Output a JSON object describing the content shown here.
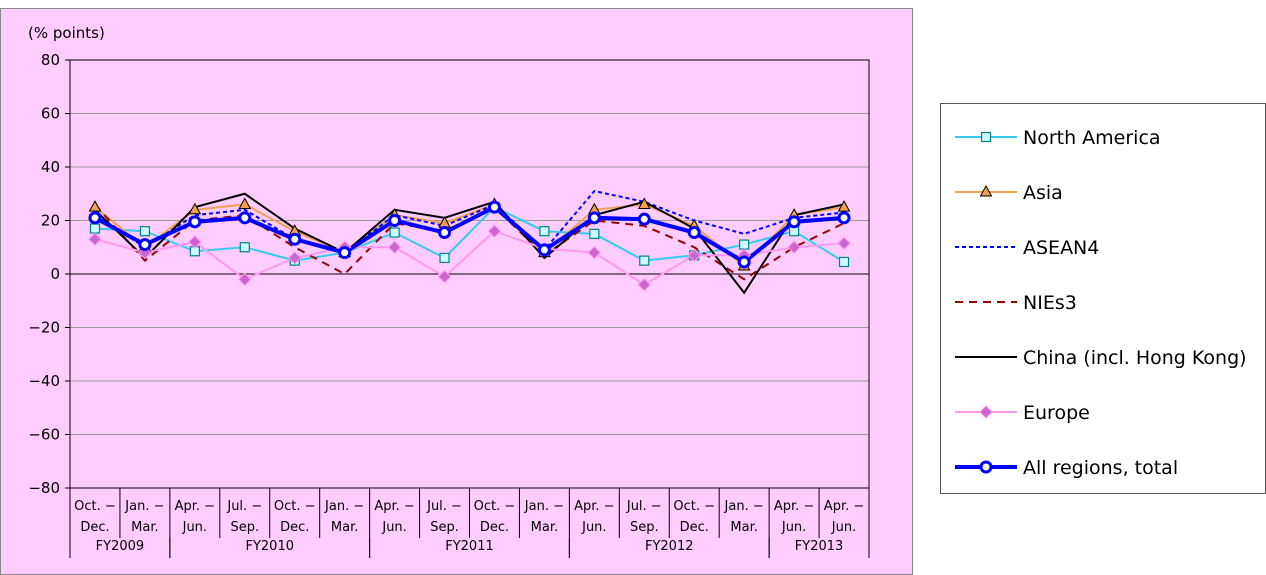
{
  "chart_data": {
    "type": "line",
    "title": "",
    "ylabel": "(% points)",
    "ylim": [
      -80,
      80
    ],
    "yticks": [
      "80",
      "60",
      "40",
      "20",
      "0",
      "−20",
      "−40",
      "−60",
      "−80"
    ],
    "grid": true,
    "legend_position": "right",
    "categories": [
      {
        "line1": "Oct. −",
        "line2": "Dec."
      },
      {
        "line1": "Jan. −",
        "line2": "Mar."
      },
      {
        "line1": "Apr. −",
        "line2": "Jun."
      },
      {
        "line1": "Jul. −",
        "line2": "Sep."
      },
      {
        "line1": "Oct. −",
        "line2": "Dec."
      },
      {
        "line1": "Jan. −",
        "line2": "Mar."
      },
      {
        "line1": "Apr. −",
        "line2": "Jun."
      },
      {
        "line1": "Jul. −",
        "line2": "Sep."
      },
      {
        "line1": "Oct. −",
        "line2": "Dec."
      },
      {
        "line1": "Jan. −",
        "line2": "Mar."
      },
      {
        "line1": "Apr. −",
        "line2": "Jun."
      },
      {
        "line1": "Jul. −",
        "line2": "Sep."
      },
      {
        "line1": "Oct. −",
        "line2": "Dec."
      },
      {
        "line1": "Jan. −",
        "line2": "Mar."
      },
      {
        "line1": "Apr. −",
        "line2": "Jun."
      },
      {
        "line1": "Apr. −",
        "line2": "Jun."
      }
    ],
    "groups": [
      {
        "label": "FY2009",
        "start": 0,
        "end": 1
      },
      {
        "label": "FY2010",
        "start": 2,
        "end": 5
      },
      {
        "label": "FY2011",
        "start": 6,
        "end": 9
      },
      {
        "label": "FY2012",
        "start": 10,
        "end": 13
      },
      {
        "label": "FY2013",
        "start": 14,
        "end": 15
      }
    ],
    "series": [
      {
        "name": "North America",
        "color": "#33ccee",
        "dash": "solid",
        "marker": "square",
        "values": [
          17,
          16,
          8.5,
          10,
          5,
          8,
          15.5,
          6,
          25,
          16,
          15,
          5,
          7,
          11,
          16,
          4.5
        ]
      },
      {
        "name": "Asia",
        "color": "#f0a050",
        "dash": "solid",
        "marker": "triangle",
        "values": [
          25,
          10,
          24,
          26,
          16,
          8,
          22,
          19,
          26,
          8,
          24,
          26,
          18,
          3,
          22,
          25
        ]
      },
      {
        "name": "ASEAN4",
        "color": "#0000ff",
        "dash": "dotted",
        "marker": "none",
        "values": [
          22,
          10,
          22,
          24,
          13,
          8,
          22,
          18,
          26,
          9,
          31,
          27,
          20,
          15,
          21,
          23
        ]
      },
      {
        "name": "NIEs3",
        "color": "#990000",
        "dash": "dashed",
        "marker": "none",
        "values": [
          26,
          5,
          20,
          22,
          10,
          0,
          19,
          16,
          25,
          7,
          20,
          18,
          10,
          -2,
          10,
          19
        ]
      },
      {
        "name": "China (incl. Hong Kong)",
        "color": "#000000",
        "dash": "solid",
        "marker": "none",
        "values": [
          24,
          6,
          25,
          30,
          17,
          8,
          24,
          21,
          27,
          6,
          22,
          27,
          17,
          -7,
          22,
          26
        ]
      },
      {
        "name": "Europe",
        "color": "#ff99ee",
        "dash": "solid",
        "marker": "diamond",
        "values": [
          13,
          8,
          12,
          -2,
          6,
          10,
          10,
          -1,
          16,
          9.5,
          8,
          -4,
          7,
          7,
          10,
          11.5
        ]
      },
      {
        "name": "All regions, total",
        "color": "#0000ff",
        "dash": "solid",
        "marker": "circle",
        "values": [
          21,
          11,
          19.5,
          21,
          13,
          8,
          20,
          15.5,
          25,
          9,
          21,
          20.5,
          15.5,
          4.5,
          19.5,
          21
        ]
      }
    ]
  }
}
